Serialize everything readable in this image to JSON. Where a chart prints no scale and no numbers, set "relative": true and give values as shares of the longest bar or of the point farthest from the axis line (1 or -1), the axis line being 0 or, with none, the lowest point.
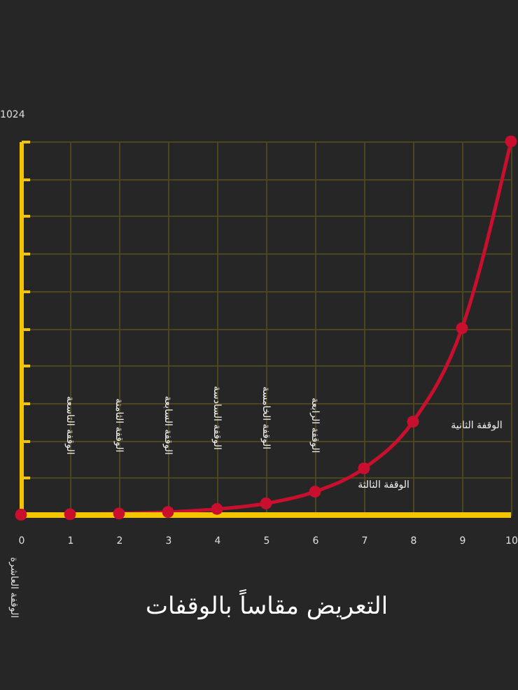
{
  "chart_data": {
    "type": "line",
    "relative": true,
    "xlabel": "التعريض مقاساً بالوقفات",
    "x": [
      0,
      1,
      2,
      3,
      4,
      5,
      6,
      7,
      8,
      9,
      10
    ],
    "xlim": [
      0,
      10
    ],
    "xticks": [
      0,
      1,
      2,
      3,
      4,
      5,
      6,
      7,
      8,
      9,
      10
    ],
    "series": [
      {
        "color": "#c8102e",
        "values": [
          0.001,
          0.002,
          0.004,
          0.008,
          0.016,
          0.031,
          0.0625,
          0.125,
          0.25,
          0.5,
          1
        ]
      }
    ],
    "marker": "circle",
    "line_style": "solid",
    "grid": true,
    "annotations": [
      "1024",
      "الوقفة العاشرة",
      "الوقفة التاسعة",
      "الوقفة الثامنة",
      "الوقفة السابعة",
      "الوقفة السادسة",
      "الوقفة الخامسة",
      "الوقفة الرابعة",
      "الوقفة الثالثة",
      "الوقفة الثانية"
    ]
  }
}
